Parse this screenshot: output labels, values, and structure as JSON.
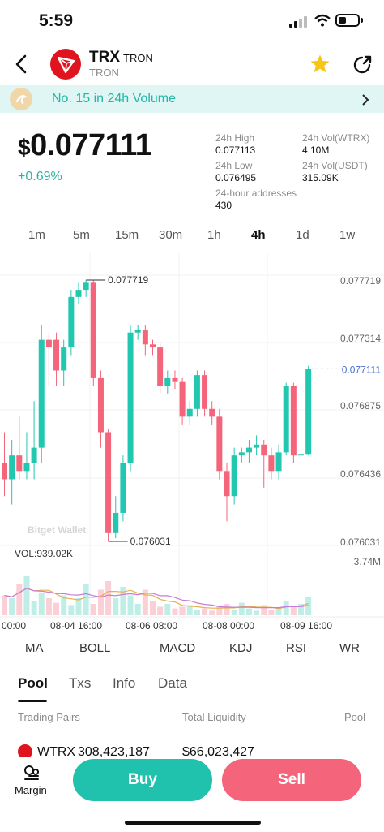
{
  "status": {
    "time": "5:59"
  },
  "token": {
    "symbol": "TRX",
    "name": "TRON",
    "chain": "TRON"
  },
  "banner": {
    "text": "No. 15 in 24h Volume"
  },
  "price": {
    "currency": "$",
    "value": "0.077111",
    "change": "+0.69%"
  },
  "stats": [
    {
      "label": "24h High",
      "value": "0.077113"
    },
    {
      "label": "24h Vol(WTRX)",
      "value": "4.10M"
    },
    {
      "label": "24h Low",
      "value": "0.076495"
    },
    {
      "label": "24h Vol(USDT)",
      "value": "315.09K"
    },
    {
      "label": "24-hour addresses",
      "value": "430"
    }
  ],
  "timeframes": [
    "1m",
    "5m",
    "15m",
    "30m",
    "1h",
    "4h",
    "1d",
    "1w"
  ],
  "active_timeframe": "4h",
  "chart": {
    "y_ticks": [
      "0.077719",
      "0.077314",
      "0.076875",
      "0.076436",
      "0.076031"
    ],
    "current_price": "0.077111",
    "high_marker": "0.077719",
    "low_marker": "0.076031",
    "vol_label": "VOL:939.02K",
    "vol_max": "3.74M",
    "watermark": "Bitget Wallet",
    "x_ticks": [
      "00:00",
      "08-04 16:00",
      "08-06 08:00",
      "08-08 00:00",
      "08-09 16:00"
    ]
  },
  "chart_data": {
    "type": "candlestick",
    "ylim": [
      0.076,
      0.0778
    ],
    "up_color": "#22c7b0",
    "down_color": "#f4647a",
    "candles": [
      {
        "o": 0.0765,
        "c": 0.0764,
        "h": 0.0767,
        "l": 0.0763
      },
      {
        "o": 0.0764,
        "c": 0.07655,
        "h": 0.07665,
        "l": 0.07625
      },
      {
        "o": 0.07655,
        "c": 0.07645,
        "h": 0.0768,
        "l": 0.0764
      },
      {
        "o": 0.07645,
        "c": 0.0765,
        "h": 0.0767,
        "l": 0.0764
      },
      {
        "o": 0.0765,
        "c": 0.0766,
        "h": 0.0769,
        "l": 0.0764
      },
      {
        "o": 0.0766,
        "c": 0.0773,
        "h": 0.0774,
        "l": 0.0765
      },
      {
        "o": 0.0773,
        "c": 0.07725,
        "h": 0.07735,
        "l": 0.077
      },
      {
        "o": 0.0773,
        "c": 0.0771,
        "h": 0.07735,
        "l": 0.077
      },
      {
        "o": 0.0771,
        "c": 0.07725,
        "h": 0.0773,
        "l": 0.077
      },
      {
        "o": 0.07725,
        "c": 0.0776,
        "h": 0.07765,
        "l": 0.0772
      },
      {
        "o": 0.0776,
        "c": 0.07765,
        "h": 0.0777,
        "l": 0.07755
      },
      {
        "o": 0.07765,
        "c": 0.0777,
        "h": 0.07772,
        "l": 0.0776
      },
      {
        "o": 0.0777,
        "c": 0.07705,
        "h": 0.07772,
        "l": 0.077
      },
      {
        "o": 0.07705,
        "c": 0.0767,
        "h": 0.0771,
        "l": 0.0766
      },
      {
        "o": 0.0767,
        "c": 0.07608,
        "h": 0.07672,
        "l": 0.07603
      },
      {
        "o": 0.07608,
        "c": 0.0762,
        "h": 0.0763,
        "l": 0.07605
      },
      {
        "o": 0.0762,
        "c": 0.0765,
        "h": 0.07655,
        "l": 0.07615
      },
      {
        "o": 0.0765,
        "c": 0.07735,
        "h": 0.0774,
        "l": 0.07645
      },
      {
        "o": 0.07735,
        "c": 0.07737,
        "h": 0.0774,
        "l": 0.0773
      },
      {
        "o": 0.07737,
        "c": 0.07727,
        "h": 0.0774,
        "l": 0.0772
      },
      {
        "o": 0.07727,
        "c": 0.07725,
        "h": 0.0773,
        "l": 0.0772
      },
      {
        "o": 0.07725,
        "c": 0.077,
        "h": 0.07728,
        "l": 0.07695
      },
      {
        "o": 0.077,
        "c": 0.07705,
        "h": 0.0771,
        "l": 0.07695
      },
      {
        "o": 0.07705,
        "c": 0.07703,
        "h": 0.0771,
        "l": 0.07698
      },
      {
        "o": 0.07703,
        "c": 0.0768,
        "h": 0.07705,
        "l": 0.07675
      },
      {
        "o": 0.0768,
        "c": 0.07685,
        "h": 0.0769,
        "l": 0.07675
      },
      {
        "o": 0.07685,
        "c": 0.07707,
        "h": 0.0771,
        "l": 0.0768
      },
      {
        "o": 0.07707,
        "c": 0.07685,
        "h": 0.0771,
        "l": 0.0768
      },
      {
        "o": 0.07685,
        "c": 0.0768,
        "h": 0.0769,
        "l": 0.07675
      },
      {
        "o": 0.0768,
        "c": 0.07645,
        "h": 0.07685,
        "l": 0.0764
      },
      {
        "o": 0.07645,
        "c": 0.0763,
        "h": 0.0765,
        "l": 0.07615
      },
      {
        "o": 0.0763,
        "c": 0.07655,
        "h": 0.0766,
        "l": 0.07625
      },
      {
        "o": 0.07655,
        "c": 0.07657,
        "h": 0.0766,
        "l": 0.0765
      },
      {
        "o": 0.07657,
        "c": 0.0766,
        "h": 0.07665,
        "l": 0.0765
      },
      {
        "o": 0.0766,
        "c": 0.07662,
        "h": 0.07668,
        "l": 0.07655
      },
      {
        "o": 0.07662,
        "c": 0.07655,
        "h": 0.07665,
        "l": 0.07635
      },
      {
        "o": 0.07655,
        "c": 0.07645,
        "h": 0.0766,
        "l": 0.0764
      },
      {
        "o": 0.07645,
        "c": 0.07657,
        "h": 0.07662,
        "l": 0.0764
      },
      {
        "o": 0.07657,
        "c": 0.077,
        "h": 0.07702,
        "l": 0.07655
      },
      {
        "o": 0.077,
        "c": 0.07655,
        "h": 0.07702,
        "l": 0.0765
      },
      {
        "o": 0.07655,
        "c": 0.07656,
        "h": 0.0766,
        "l": 0.0765
      },
      {
        "o": 0.07656,
        "c": 0.07711,
        "h": 0.07713,
        "l": 0.07655
      }
    ],
    "volumes": [
      0.35,
      0.3,
      0.55,
      0.7,
      0.25,
      0.4,
      0.3,
      0.22,
      0.35,
      0.18,
      0.3,
      0.55,
      0.2,
      0.45,
      0.6,
      0.3,
      0.5,
      0.35,
      0.2,
      0.45,
      0.25,
      0.15,
      0.2,
      0.12,
      0.15,
      0.18,
      0.1,
      0.12,
      0.08,
      0.15,
      0.2,
      0.1,
      0.22,
      0.12,
      0.08,
      0.18,
      0.1,
      0.12,
      0.25,
      0.15,
      0.2,
      0.32
    ]
  },
  "indicators": [
    "MA",
    "BOLL",
    "MACD",
    "KDJ",
    "RSI",
    "WR"
  ],
  "tabs": [
    "Pool",
    "Txs",
    "Info",
    "Data"
  ],
  "active_tab": "Pool",
  "pool_table": {
    "headers": [
      "Trading Pairs",
      "Total Liquidity",
      "Pool"
    ],
    "first_row": {
      "pair": "WTRX",
      "amount": "308,423,187",
      "liquidity": "$66,023,427"
    }
  },
  "actions": {
    "margin": "Margin",
    "buy": "Buy",
    "sell": "Sell"
  }
}
